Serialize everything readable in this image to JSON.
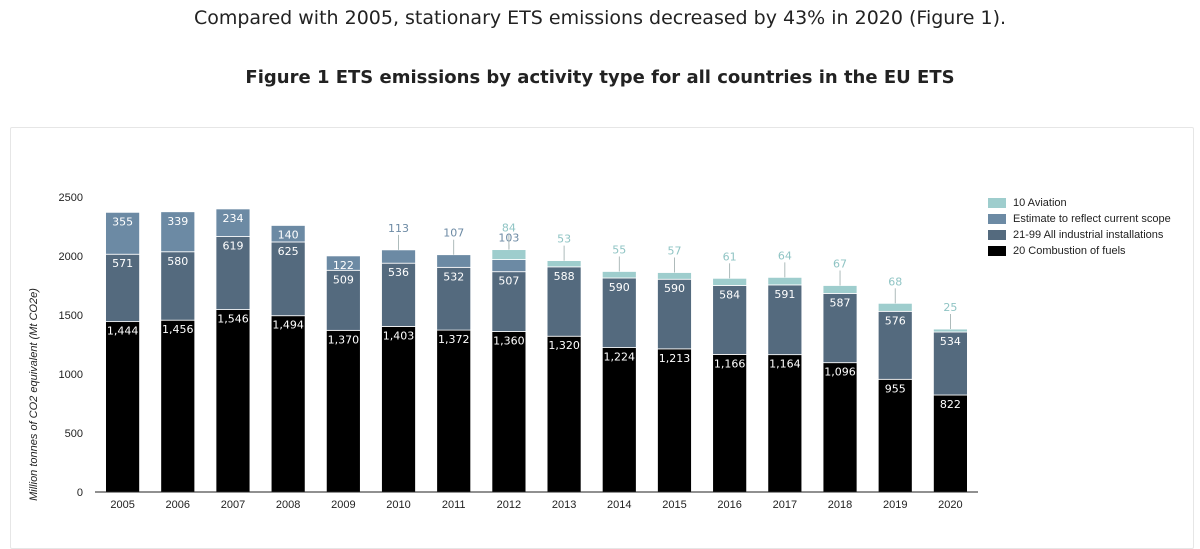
{
  "intro_text": "Compared with 2005, stationary ETS emissions decreased by 43% in 2020 (Figure 1).",
  "figure_title": "Figure 1 ETS emissions by activity type for all countries in the EU ETS",
  "chart_data": {
    "type": "bar",
    "stacked": true,
    "categories": [
      "2005",
      "2006",
      "2007",
      "2008",
      "2009",
      "2010",
      "2011",
      "2012",
      "2013",
      "2014",
      "2015",
      "2016",
      "2017",
      "2018",
      "2019",
      "2020"
    ],
    "ylabel": "Million tonnes of CO2 equivalent (Mt CO2e)",
    "ylim": [
      0,
      2500
    ],
    "yticks": [
      0,
      500,
      1000,
      1500,
      2000,
      2500
    ],
    "legend_position": "right",
    "series": [
      {
        "name": "20 Combustion of fuels",
        "color": "#000000",
        "values": [
          1444,
          1456,
          1546,
          1494,
          1370,
          1403,
          1372,
          1360,
          1320,
          1224,
          1213,
          1166,
          1164,
          1096,
          955,
          822
        ],
        "labels": [
          "1,444",
          "1,456",
          "1,546",
          "1,494",
          "1,370",
          "1,403",
          "1,372",
          "1,360",
          "1,320",
          "1,224",
          "1,213",
          "1,166",
          "1,164",
          "1,096",
          "955",
          "822"
        ]
      },
      {
        "name": "21-99 All industrial installations",
        "color": "#546a7e",
        "values": [
          571,
          580,
          619,
          625,
          509,
          536,
          532,
          507,
          588,
          590,
          590,
          584,
          591,
          587,
          576,
          534
        ],
        "labels": [
          "571",
          "580",
          "619",
          "625",
          "509",
          "536",
          "532",
          "507",
          "588",
          "590",
          "590",
          "584",
          "591",
          "587",
          "576",
          "534"
        ]
      },
      {
        "name": "Estimate to reflect current scope",
        "color": "#6c8aa4",
        "values": [
          355,
          339,
          234,
          140,
          122,
          113,
          107,
          103,
          null,
          null,
          null,
          null,
          null,
          null,
          null,
          null
        ],
        "labels": [
          "355",
          "339",
          "234",
          "140",
          "122",
          "113",
          "107",
          "103",
          "",
          "",
          "",
          "",
          "",
          "",
          "",
          ""
        ]
      },
      {
        "name": "10 Aviation",
        "color": "#9ecdcd",
        "values": [
          null,
          null,
          null,
          null,
          null,
          null,
          null,
          84,
          53,
          55,
          57,
          61,
          64,
          67,
          68,
          25
        ],
        "labels": [
          "",
          "",
          "",
          "",
          "",
          "",
          "",
          "84",
          "53",
          "55",
          "57",
          "61",
          "64",
          "67",
          "68",
          "25"
        ]
      }
    ],
    "legend_order": [
      "10 Aviation",
      "Estimate to reflect current scope",
      "21-99 All industrial installations",
      "20 Combustion of fuels"
    ]
  }
}
